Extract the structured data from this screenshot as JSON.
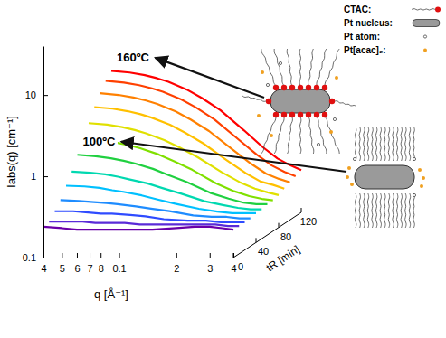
{
  "chart_data": {
    "type": "line",
    "log": true,
    "x_label": "q [Å⁻¹]",
    "y_label": "Iabs(q) [cm⁻¹]",
    "z_label": "tR [min]",
    "x": [
      0.04,
      0.05,
      0.06,
      0.07,
      0.08,
      0.1,
      0.12,
      0.15,
      0.2,
      0.25,
      0.3,
      0.35,
      0.4
    ],
    "xlim": [
      0.04,
      0.4
    ],
    "xticks": [
      {
        "value": 0.04,
        "label": "4"
      },
      {
        "value": 0.05,
        "label": "5"
      },
      {
        "value": 0.06,
        "label": "6"
      },
      {
        "value": 0.07,
        "label": "7"
      },
      {
        "value": 0.08,
        "label": "8"
      },
      0.1,
      {
        "value": 0.2,
        "label": "2"
      },
      {
        "value": 0.3,
        "label": "3"
      },
      {
        "value": 0.4,
        "label": "4"
      }
    ],
    "ylim": [
      0.1,
      40
    ],
    "yticks": [
      0.1,
      1,
      10
    ],
    "zlim": [
      0,
      120
    ],
    "zticks": [
      0,
      40,
      80,
      120
    ],
    "series": [
      {
        "z": 0,
        "color": "#6a00a8",
        "values": [
          0.24,
          0.23,
          0.22,
          0.22,
          0.22,
          0.22,
          0.22,
          0.22,
          0.23,
          0.24,
          0.24,
          0.23,
          0.22
        ]
      },
      {
        "z": 10,
        "color": "#5a2ad8",
        "values": [
          0.25,
          0.25,
          0.25,
          0.24,
          0.24,
          0.24,
          0.23,
          0.23,
          0.23,
          0.23,
          0.23,
          0.22,
          0.22
        ]
      },
      {
        "z": 20,
        "color": "#2f4bff",
        "values": [
          0.3,
          0.3,
          0.29,
          0.28,
          0.28,
          0.27,
          0.26,
          0.24,
          0.23,
          0.23,
          0.22,
          0.22,
          0.22
        ]
      },
      {
        "z": 30,
        "color": "#1e8cff",
        "values": [
          0.37,
          0.36,
          0.35,
          0.34,
          0.33,
          0.31,
          0.29,
          0.27,
          0.24,
          0.23,
          0.23,
          0.22,
          0.22
        ]
      },
      {
        "z": 40,
        "color": "#00c0ff",
        "values": [
          0.5,
          0.49,
          0.47,
          0.44,
          0.42,
          0.38,
          0.34,
          0.3,
          0.26,
          0.24,
          0.23,
          0.23,
          0.23
        ]
      },
      {
        "z": 50,
        "color": "#00d8b0",
        "values": [
          0.67,
          0.65,
          0.62,
          0.58,
          0.54,
          0.48,
          0.42,
          0.36,
          0.29,
          0.26,
          0.24,
          0.23,
          0.23
        ]
      },
      {
        "z": 60,
        "color": "#20d040",
        "label": "100ºC",
        "values": [
          0.97,
          0.93,
          0.88,
          0.82,
          0.76,
          0.65,
          0.55,
          0.45,
          0.33,
          0.28,
          0.25,
          0.24,
          0.24
        ]
      },
      {
        "z": 70,
        "color": "#80e000",
        "values": [
          1.37,
          1.31,
          1.23,
          1.14,
          1.05,
          0.88,
          0.73,
          0.57,
          0.39,
          0.31,
          0.27,
          0.25,
          0.24
        ]
      },
      {
        "z": 80,
        "color": "#e0e000",
        "values": [
          1.92,
          1.84,
          1.72,
          1.58,
          1.44,
          1.19,
          0.97,
          0.73,
          0.48,
          0.36,
          0.3,
          0.27,
          0.25
        ]
      },
      {
        "z": 90,
        "color": "#ffc000",
        "values": [
          2.72,
          2.6,
          2.42,
          2.22,
          2.02,
          1.65,
          1.32,
          0.97,
          0.6,
          0.42,
          0.33,
          0.3,
          0.27
        ]
      },
      {
        "z": 100,
        "color": "#ff8000",
        "values": [
          3.62,
          3.45,
          3.21,
          2.94,
          2.67,
          2.16,
          1.72,
          1.24,
          0.73,
          0.49,
          0.37,
          0.32,
          0.29
        ]
      },
      {
        "z": 110,
        "color": "#ff4000",
        "values": [
          4.62,
          4.4,
          4.09,
          3.74,
          3.39,
          2.73,
          2.16,
          1.54,
          0.88,
          0.57,
          0.42,
          0.35,
          0.31
        ]
      },
      {
        "z": 120,
        "color": "#ff0000",
        "label": "160ºC",
        "values": [
          5.52,
          5.26,
          4.88,
          4.46,
          4.04,
          3.24,
          2.55,
          1.81,
          1.02,
          0.64,
          0.46,
          0.38,
          0.33
        ]
      }
    ]
  },
  "inset": {
    "items": [
      "CTAC:",
      "Pt nucleus:",
      "Pt atom:",
      "Pt[acac]₂:"
    ]
  }
}
